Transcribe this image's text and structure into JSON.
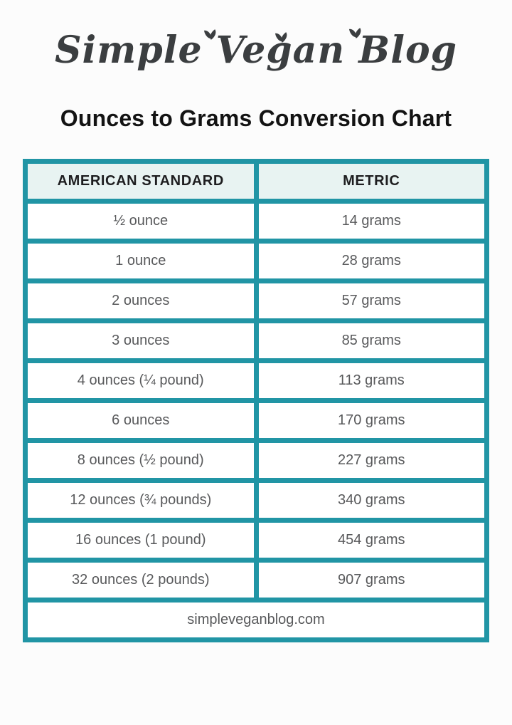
{
  "page": {
    "logo_text": "Simple Vegan Blog",
    "title": "Ounces to Grams Conversion Chart",
    "footer_website": "simpleveganblog.com"
  },
  "chart_data": {
    "type": "table",
    "title": "Ounces to Grams Conversion Chart",
    "columns": [
      "AMERICAN STANDARD",
      "METRIC"
    ],
    "rows": [
      [
        "½ ounce",
        "14 grams"
      ],
      [
        "1 ounce",
        "28 grams"
      ],
      [
        "2 ounces",
        "57 grams"
      ],
      [
        "3 ounces",
        "85 grams"
      ],
      [
        "4 ounces (¼ pound)",
        "113 grams"
      ],
      [
        "6 ounces",
        "170 grams"
      ],
      [
        "8 ounces (½ pound)",
        "227 grams"
      ],
      [
        "12 ounces (¾ pounds)",
        "340 grams"
      ],
      [
        "16 ounces (1 pound)",
        "454 grams"
      ],
      [
        "32 ounces (2 pounds)",
        "907 grams"
      ]
    ],
    "layout": {
      "header_row": true,
      "footer_row": "simpleveganblog.com",
      "grid": true
    }
  },
  "colors": {
    "border_teal": "#2195a5",
    "header_background": "#e8f3f2",
    "header_text": "#1e1e20",
    "cell_text": "#58595b",
    "title_text": "#131313",
    "page_background": "#fcfcfc"
  }
}
